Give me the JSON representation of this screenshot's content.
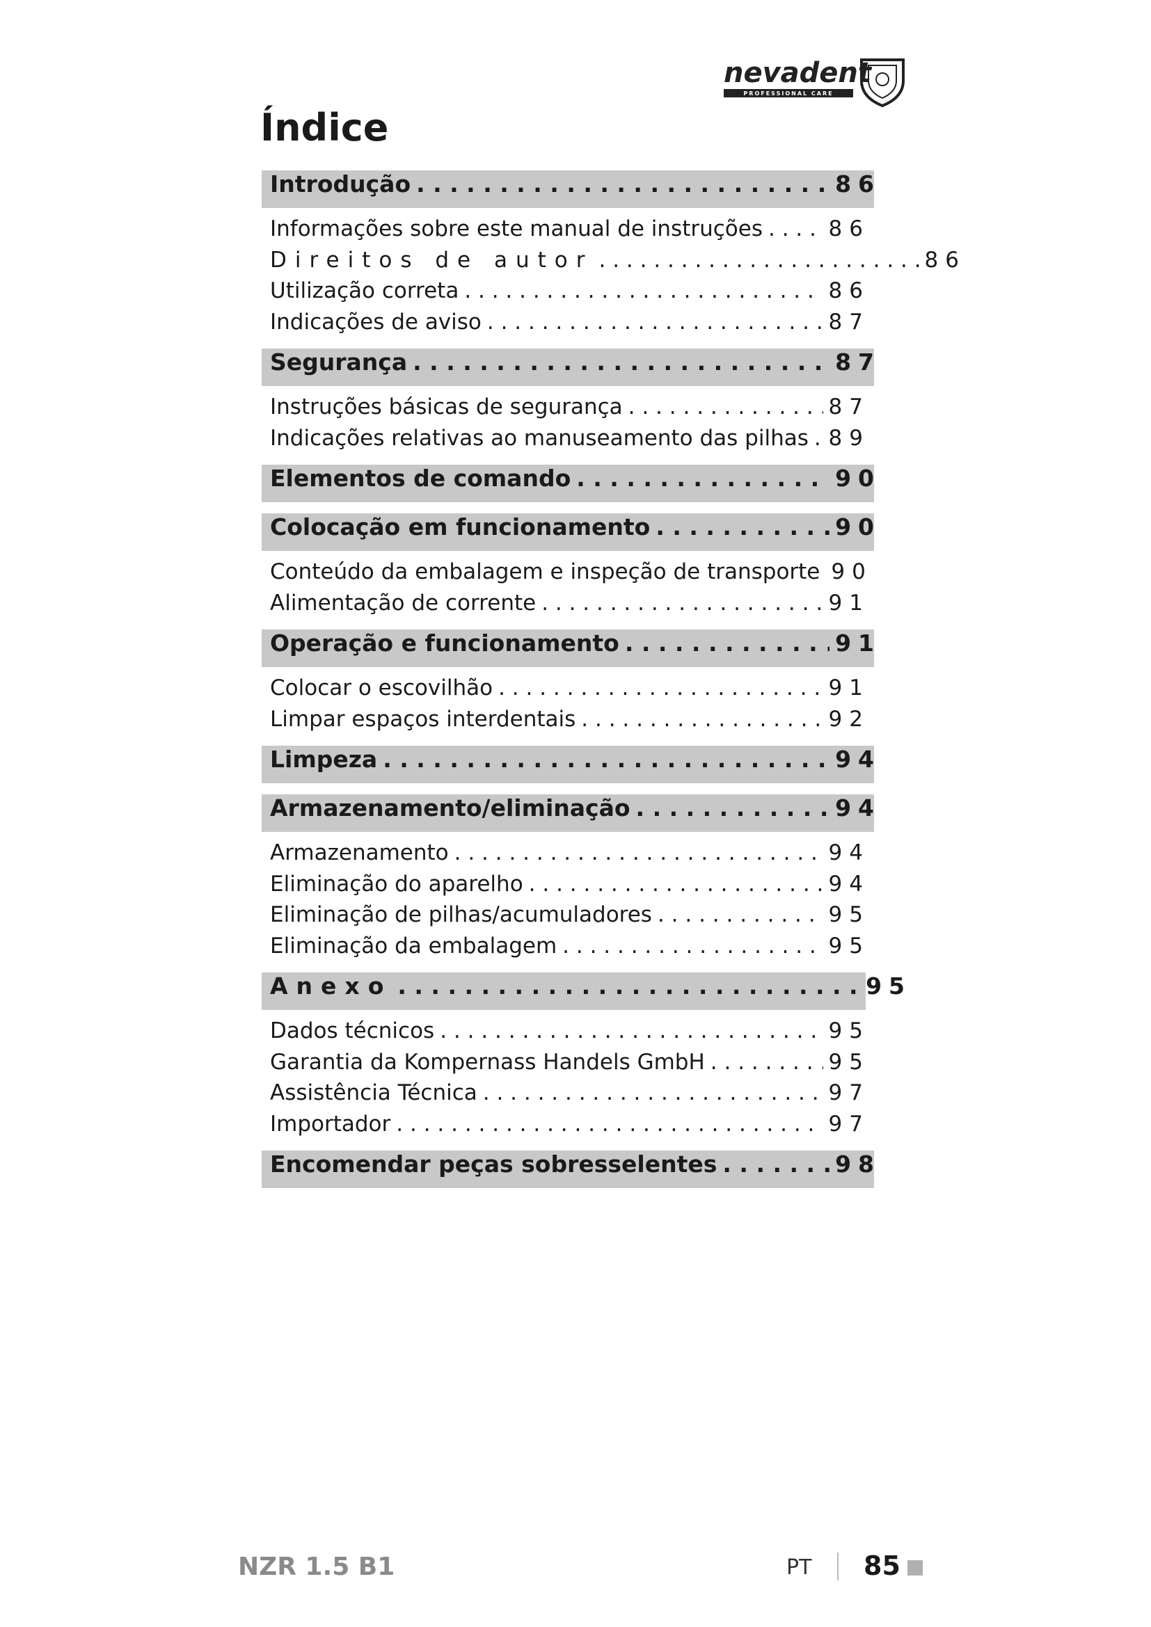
{
  "header": {
    "brand": "nevadent",
    "tagline": "PROFESSIONAL CARE"
  },
  "title": "Índice",
  "sections": [
    {
      "title": "Introdução",
      "page": "86",
      "items": [
        {
          "title": "Informações sobre este manual de instruções",
          "page": "86"
        },
        {
          "title": "Direitos de autor",
          "page": "86"
        },
        {
          "title": "Utilização correta",
          "page": "86"
        },
        {
          "title": "Indicações de aviso",
          "page": "87"
        }
      ]
    },
    {
      "title": "Segurança",
      "page": "87",
      "items": [
        {
          "title": "Instruções básicas de segurança",
          "page": "87"
        },
        {
          "title": "Indicações relativas ao manuseamento das pilhas",
          "page": "89"
        }
      ]
    },
    {
      "title": "Elementos de comando",
      "page": "90",
      "items": []
    },
    {
      "title": "Colocação em funcionamento",
      "page": "90",
      "items": [
        {
          "title": "Conteúdo da embalagem e inspeção de transporte",
          "page": "90"
        },
        {
          "title": "Alimentação de corrente",
          "page": "91"
        }
      ]
    },
    {
      "title": "Operação e funcionamento",
      "page": "91",
      "items": [
        {
          "title": "Colocar o escovilhão",
          "page": "91"
        },
        {
          "title": "Limpar espaços interdentais",
          "page": "92"
        }
      ]
    },
    {
      "title": "Limpeza",
      "page": "94",
      "items": []
    },
    {
      "title": "Armazenamento/eliminação",
      "page": "94",
      "items": [
        {
          "title": "Armazenamento",
          "page": "94"
        },
        {
          "title": "Eliminação do aparelho",
          "page": "94"
        },
        {
          "title": "Eliminação de pilhas/acumuladores",
          "page": "95"
        },
        {
          "title": "Eliminação da embalagem",
          "page": "95"
        }
      ]
    },
    {
      "title": "Anexo",
      "page": "95",
      "items": [
        {
          "title": "Dados técnicos",
          "page": "95"
        },
        {
          "title": "Garantia da Kompernass Handels GmbH",
          "page": "95"
        },
        {
          "title": "Assistência Técnica",
          "page": "97"
        },
        {
          "title": "Importador",
          "page": "97"
        }
      ]
    },
    {
      "title": "Encomendar peças sobresselentes",
      "page": "98",
      "items": []
    }
  ],
  "footer": {
    "model": "NZR 1.5 B1",
    "language": "PT",
    "page_number": "85"
  }
}
